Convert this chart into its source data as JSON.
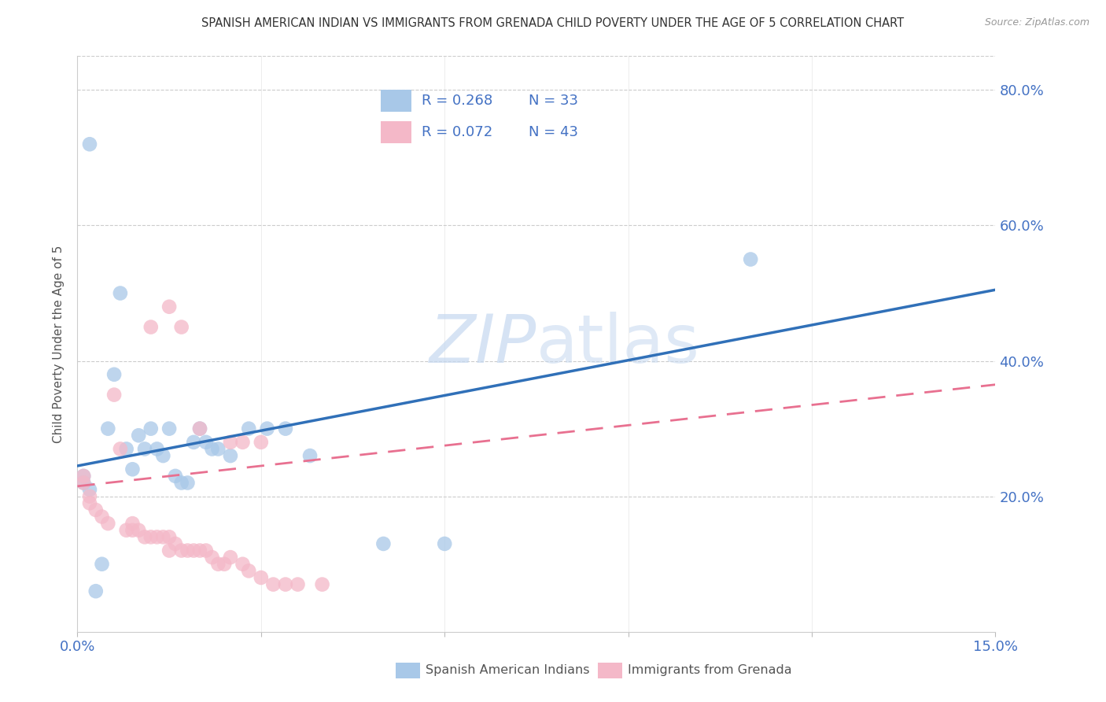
{
  "title": "SPANISH AMERICAN INDIAN VS IMMIGRANTS FROM GRENADA CHILD POVERTY UNDER THE AGE OF 5 CORRELATION CHART",
  "source": "Source: ZipAtlas.com",
  "ylabel": "Child Poverty Under the Age of 5",
  "xlim": [
    0.0,
    0.15
  ],
  "ylim": [
    0.0,
    0.85
  ],
  "xticks": [
    0.0,
    0.03,
    0.06,
    0.09,
    0.12,
    0.15
  ],
  "xticklabels": [
    "0.0%",
    "",
    "",
    "",
    "",
    "15.0%"
  ],
  "yticks_right": [
    0.2,
    0.4,
    0.6,
    0.8
  ],
  "yticklabels_right": [
    "20.0%",
    "40.0%",
    "60.0%",
    "80.0%"
  ],
  "legend_r1": "R = 0.268",
  "legend_n1": "N = 33",
  "legend_r2": "R = 0.072",
  "legend_n2": "N = 43",
  "blue_color": "#a8c8e8",
  "pink_color": "#f4b8c8",
  "blue_line_color": "#3070b8",
  "pink_line_color": "#e87090",
  "axis_label_color": "#4472c4",
  "grid_color": "#cccccc",
  "watermark_color": "#c5d8f0",
  "blue_trend_x": [
    0.0,
    0.15
  ],
  "blue_trend_y": [
    0.245,
    0.505
  ],
  "pink_trend_x": [
    0.0,
    0.15
  ],
  "pink_trend_y": [
    0.215,
    0.365
  ],
  "blue_x": [
    0.001,
    0.001,
    0.002,
    0.003,
    0.004,
    0.005,
    0.006,
    0.007,
    0.008,
    0.009,
    0.01,
    0.011,
    0.012,
    0.013,
    0.014,
    0.015,
    0.016,
    0.017,
    0.018,
    0.019,
    0.02,
    0.021,
    0.022,
    0.023,
    0.025,
    0.028,
    0.031,
    0.034,
    0.038,
    0.05,
    0.06,
    0.11,
    0.002
  ],
  "blue_y": [
    0.23,
    0.22,
    0.21,
    0.06,
    0.1,
    0.3,
    0.38,
    0.5,
    0.27,
    0.24,
    0.29,
    0.27,
    0.3,
    0.27,
    0.26,
    0.3,
    0.23,
    0.22,
    0.22,
    0.28,
    0.3,
    0.28,
    0.27,
    0.27,
    0.26,
    0.3,
    0.3,
    0.3,
    0.26,
    0.13,
    0.13,
    0.55,
    0.72
  ],
  "pink_x": [
    0.001,
    0.001,
    0.002,
    0.002,
    0.003,
    0.004,
    0.005,
    0.006,
    0.007,
    0.008,
    0.009,
    0.009,
    0.01,
    0.011,
    0.012,
    0.013,
    0.014,
    0.015,
    0.015,
    0.016,
    0.017,
    0.018,
    0.019,
    0.02,
    0.021,
    0.022,
    0.023,
    0.024,
    0.025,
    0.027,
    0.028,
    0.03,
    0.032,
    0.034,
    0.036,
    0.04,
    0.012,
    0.015,
    0.017,
    0.02,
    0.025,
    0.027,
    0.03
  ],
  "pink_y": [
    0.23,
    0.22,
    0.2,
    0.19,
    0.18,
    0.17,
    0.16,
    0.35,
    0.27,
    0.15,
    0.15,
    0.16,
    0.15,
    0.14,
    0.14,
    0.14,
    0.14,
    0.14,
    0.12,
    0.13,
    0.12,
    0.12,
    0.12,
    0.12,
    0.12,
    0.11,
    0.1,
    0.1,
    0.11,
    0.1,
    0.09,
    0.08,
    0.07,
    0.07,
    0.07,
    0.07,
    0.45,
    0.48,
    0.45,
    0.3,
    0.28,
    0.28,
    0.28
  ]
}
